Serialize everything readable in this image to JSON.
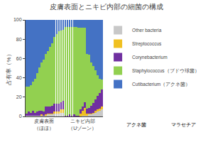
{
  "chart_data": {
    "type": "bar",
    "title": "皮膚表面とニキビ内部の細菌の構成",
    "ylabel": "占有率（%）",
    "stacked": true,
    "grid": false,
    "legend": "upper right",
    "ylim": [
      0,
      100
    ],
    "yticks": [
      0,
      20,
      40,
      60,
      80,
      100
    ],
    "categories": [
      null,
      null,
      null,
      null,
      null,
      null,
      null,
      null,
      "皮膚表面\n（ほほ）",
      null,
      null,
      null,
      null,
      null,
      null,
      null,
      null,
      null,
      null,
      null,
      null,
      null,
      null,
      null,
      null,
      null,
      "ニキビ内部\n（Uゾーン）",
      null,
      null,
      null,
      null,
      null,
      null,
      null,
      null,
      null
    ],
    "series": [
      {
        "name": "Other bacteria",
        "color": "#c8c8c8",
        "values": [
          1,
          1,
          1,
          1,
          1,
          1,
          1,
          1,
          1,
          1,
          2,
          2,
          2,
          3,
          3,
          3,
          4,
          4,
          0,
          0,
          0,
          0,
          0,
          0,
          0,
          0,
          1,
          1,
          1,
          2,
          2,
          3,
          4,
          5,
          6,
          7
        ]
      },
      {
        "name": "Streptococcus",
        "color": "#f0c020",
        "values": [
          0,
          0,
          0,
          0,
          0,
          0,
          0,
          1,
          0,
          1,
          1,
          1,
          1,
          2,
          2,
          2,
          3,
          3,
          0,
          0,
          0,
          0,
          0,
          0,
          0,
          3,
          5,
          8,
          2,
          1,
          1,
          1,
          2,
          2,
          2,
          3
        ]
      },
      {
        "name": "Corynebacterium",
        "color": "#7030a0",
        "values": [
          2,
          4,
          3,
          5,
          3,
          4,
          5,
          4,
          4,
          8,
          7,
          7,
          8,
          8,
          8,
          8,
          8,
          9,
          1,
          1,
          2,
          1,
          2,
          1,
          1,
          4,
          4,
          6,
          5,
          6,
          8,
          10,
          12,
          14,
          16,
          18
        ]
      },
      {
        "name": "Staphylococcus（ブドウ球菌）",
        "color": "#92d050",
        "values": [
          28,
          26,
          28,
          30,
          35,
          40,
          45,
          50,
          54,
          55,
          58,
          62,
          65,
          69,
          72,
          75,
          74,
          74,
          92,
          92,
          91,
          92,
          91,
          92,
          91,
          85,
          82,
          77,
          57,
          55,
          45,
          38,
          30,
          22,
          15,
          10
        ]
      },
      {
        "name": "Cutibacterium（アクネ菌）",
        "color": "#4472c4",
        "values": [
          69,
          69,
          68,
          64,
          61,
          55,
          49,
          44,
          41,
          35,
          32,
          28,
          24,
          18,
          15,
          12,
          11,
          10,
          7,
          7,
          7,
          7,
          7,
          7,
          8,
          8,
          8,
          8,
          35,
          36,
          44,
          48,
          52,
          57,
          61,
          62
        ]
      }
    ],
    "annotations": [
      "アクネ菌",
      "マラセチア"
    ]
  }
}
